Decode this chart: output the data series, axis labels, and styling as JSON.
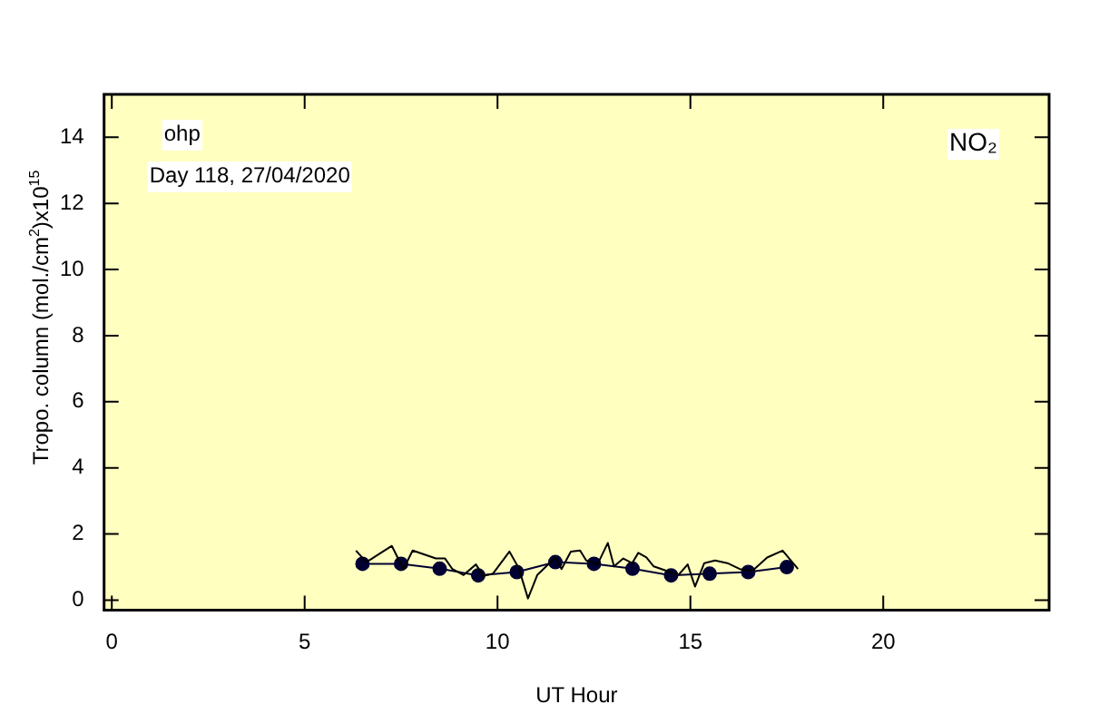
{
  "chart_data": {
    "type": "line",
    "xlabel": "UT Hour",
    "ylabel": "Tropo. column (mol./cm$^{2}$)x10$^{15}$",
    "annotations": [
      "ohp",
      "Day 118, 27/04/2020",
      "NO₂"
    ],
    "xlim": [
      -0.2,
      24.3
    ],
    "xticks": [
      0,
      5,
      10,
      15,
      20
    ],
    "ylim": [
      -0.3,
      15.3
    ],
    "yticks": [
      0,
      2,
      4,
      6,
      8,
      10,
      12,
      14
    ],
    "series": [
      {
        "color": "#000000",
        "marker": "none",
        "x": [
          6.33,
          6.6,
          7.26,
          7.56,
          7.8,
          8.4,
          8.64,
          8.83,
          9.12,
          9.44,
          9.63,
          9.88,
          10.31,
          10.55,
          10.79,
          11.03,
          11.5,
          11.66,
          11.9,
          12.14,
          12.3,
          12.59,
          12.86,
          13.02,
          13.26,
          13.49,
          13.65,
          13.86,
          14.05,
          14.69,
          14.93,
          15.12,
          15.36,
          15.64,
          15.96,
          16.28,
          16.6,
          16.99,
          17.39,
          17.79
        ],
        "values": [
          1.5,
          1.15,
          1.64,
          0.94,
          1.5,
          1.26,
          1.26,
          0.94,
          0.76,
          1.08,
          0.73,
          0.8,
          1.47,
          0.97,
          0.05,
          0.76,
          1.29,
          0.94,
          1.47,
          1.5,
          1.2,
          1.08,
          1.73,
          1.02,
          1.26,
          1.12,
          1.43,
          1.29,
          1.02,
          0.76,
          1.08,
          0.41,
          1.12,
          1.2,
          1.12,
          0.94,
          0.88,
          1.29,
          1.5,
          0.94
        ]
      },
      {
        "color": "#000033",
        "marker": "circle",
        "x": [
          6.5,
          7.5,
          8.5,
          9.5,
          10.5,
          11.5,
          12.5,
          13.5,
          14.5,
          15.5,
          16.5,
          17.5
        ],
        "values": [
          1.1,
          1.1,
          0.95,
          0.75,
          0.85,
          1.15,
          1.1,
          0.95,
          0.75,
          0.8,
          0.85,
          1.0
        ]
      }
    ]
  }
}
